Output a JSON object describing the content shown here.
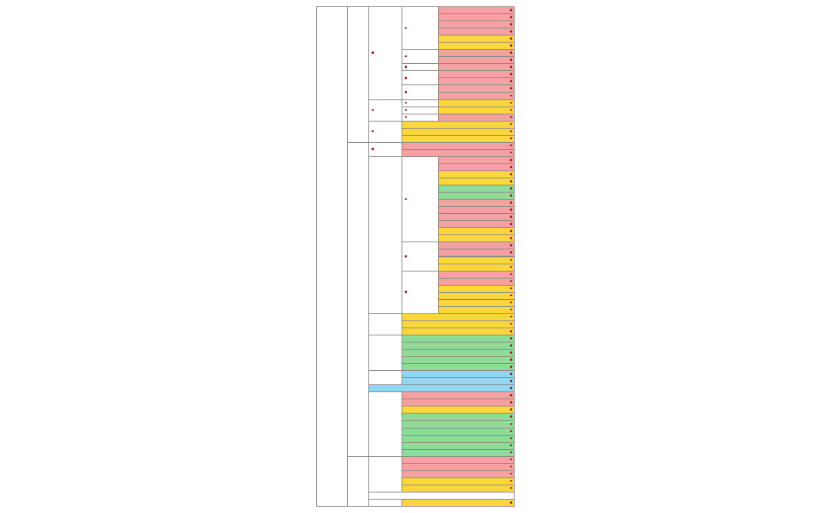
{
  "colors": {
    "red": "#f5a1a1",
    "yellow": "#fcd73c",
    "green": "#8fdb98",
    "blue": "#8fd7f2",
    "white": "#ffffff",
    "border": "#8a8a8a",
    "dot": "#9b1c1c"
  },
  "tree": {
    "label": "",
    "marker": false,
    "children": [
      {
        "label": "",
        "marker": false,
        "children": [
          {
            "label": "",
            "marker": true,
            "children": [
              {
                "label": "",
                "marker": true,
                "children": [
                  {
                    "label": "",
                    "marker": true,
                    "children": [
                      {
                        "label": "",
                        "marker": true,
                        "color": "red"
                      },
                      {
                        "label": "",
                        "marker": true,
                        "color": "red"
                      }
                    ]
                  },
                  {
                    "label": "",
                    "marker": true,
                    "children": [
                      {
                        "label": "",
                        "marker": true,
                        "color": "red"
                      },
                      {
                        "label": "",
                        "marker": true,
                        "color": "red"
                      },
                      {
                        "label": "",
                        "marker": true,
                        "color": "yellow"
                      },
                      {
                        "label": "",
                        "marker": true,
                        "color": "yellow"
                      }
                    ]
                  }
                ]
              },
              {
                "label": "",
                "marker": true,
                "children": [
                  {
                    "label": "",
                    "marker": true,
                    "color": "red"
                  },
                  {
                    "label": "",
                    "marker": true,
                    "color": "red"
                  }
                ]
              },
              {
                "label": "",
                "marker": true,
                "children": [
                  {
                    "label": "",
                    "marker": true,
                    "color": "red"
                  }
                ]
              },
              {
                "label": "",
                "marker": true,
                "children": [
                  {
                    "label": "",
                    "marker": true,
                    "color": "red"
                  },
                  {
                    "label": "",
                    "marker": true,
                    "color": "red"
                  }
                ]
              },
              {
                "label": "",
                "marker": true,
                "children": [
                  {
                    "label": "",
                    "marker": true,
                    "children": [
                      {
                        "label": "",
                        "marker": true,
                        "color": "red"
                      }
                    ]
                  },
                  {
                    "label": "",
                    "marker": true,
                    "children": [
                      {
                        "label": "",
                        "marker": true,
                        "color": "red"
                      }
                    ]
                  }
                ]
              }
            ]
          },
          {
            "label": "",
            "marker": true,
            "children": [
              {
                "label": "",
                "marker": true,
                "children": [
                  {
                    "label": "",
                    "marker": true,
                    "color": "yellow"
                  }
                ]
              },
              {
                "label": "",
                "marker": true,
                "children": [
                  {
                    "label": "",
                    "marker": true,
                    "color": "yellow"
                  }
                ]
              },
              {
                "label": "",
                "marker": true,
                "children": [
                  {
                    "label": "",
                    "marker": true,
                    "color": "red"
                  }
                ]
              }
            ]
          },
          {
            "label": "",
            "marker": true,
            "children": [
              {
                "label": "",
                "marker": true,
                "color": "yellow"
              },
              {
                "label": "",
                "marker": true,
                "color": "yellow"
              },
              {
                "label": "",
                "marker": true,
                "color": "yellow"
              }
            ]
          }
        ]
      },
      {
        "label": "",
        "marker": false,
        "children": [
          {
            "label": "",
            "marker": true,
            "children": [
              {
                "label": "",
                "marker": true,
                "color": "red"
              },
              {
                "label": "",
                "marker": true,
                "color": "red"
              }
            ]
          },
          {
            "label": "",
            "marker": false,
            "children": [
              {
                "label": "",
                "marker": true,
                "children": [
                  {
                    "label": "",
                    "marker": true,
                    "color": "red"
                  },
                  {
                    "label": "",
                    "marker": true,
                    "color": "red"
                  },
                  {
                    "label": "",
                    "marker": true,
                    "color": "yellow"
                  },
                  {
                    "label": "",
                    "marker": true,
                    "color": "yellow"
                  },
                  {
                    "label": "",
                    "marker": true,
                    "color": "green"
                  },
                  {
                    "label": "",
                    "marker": true,
                    "color": "green"
                  },
                  {
                    "label": "",
                    "marker": true,
                    "color": "red"
                  },
                  {
                    "label": "",
                    "marker": true,
                    "color": "red"
                  },
                  {
                    "label": "",
                    "marker": true,
                    "color": "red"
                  },
                  {
                    "label": "",
                    "marker": true,
                    "color": "red"
                  },
                  {
                    "label": "",
                    "marker": true,
                    "color": "yellow"
                  },
                  {
                    "label": "",
                    "marker": true,
                    "color": "yellow"
                  }
                ]
              },
              {
                "label": "",
                "marker": true,
                "children": [
                  {
                    "label": "",
                    "marker": true,
                    "color": "red"
                  },
                  {
                    "label": "",
                    "marker": true,
                    "color": "red"
                  },
                  {
                    "label": "",
                    "marker": true,
                    "color": "yellow"
                  },
                  {
                    "label": "",
                    "marker": true,
                    "color": "yellow"
                  }
                ]
              },
              {
                "label": "",
                "marker": true,
                "children": [
                  {
                    "label": "",
                    "marker": true,
                    "color": "red"
                  },
                  {
                    "label": "",
                    "marker": true,
                    "color": "red"
                  },
                  {
                    "label": "",
                    "marker": true,
                    "color": "yellow"
                  },
                  {
                    "label": "",
                    "marker": true,
                    "color": "yellow"
                  },
                  {
                    "label": "",
                    "marker": true,
                    "color": "yellow"
                  },
                  {
                    "label": "",
                    "marker": true,
                    "color": "yellow"
                  }
                ]
              }
            ]
          },
          {
            "label": "",
            "marker": false,
            "children": [
              {
                "label": "",
                "marker": true,
                "color": "yellow"
              },
              {
                "label": "",
                "marker": true,
                "color": "yellow"
              },
              {
                "label": "",
                "marker": true,
                "color": "yellow"
              }
            ]
          },
          {
            "label": "",
            "marker": false,
            "children": [
              {
                "label": "",
                "marker": true,
                "color": "green"
              },
              {
                "label": "",
                "marker": true,
                "color": "green"
              },
              {
                "label": "",
                "marker": true,
                "color": "green"
              },
              {
                "label": "",
                "marker": true,
                "color": "green"
              },
              {
                "label": "",
                "marker": true,
                "color": "green"
              }
            ]
          },
          {
            "label": "",
            "marker": false,
            "children": [
              {
                "label": "",
                "marker": true,
                "color": "blue"
              },
              {
                "label": "",
                "marker": true,
                "color": "blue"
              }
            ]
          },
          {
            "label": "",
            "marker": true,
            "color": "blue"
          },
          {
            "label": "",
            "marker": false,
            "children": [
              {
                "label": "",
                "marker": true,
                "color": "red"
              },
              {
                "label": "",
                "marker": true,
                "color": "red"
              },
              {
                "label": "",
                "marker": true,
                "color": "yellow"
              },
              {
                "label": "",
                "marker": true,
                "color": "green"
              },
              {
                "label": "",
                "marker": true,
                "color": "green"
              },
              {
                "label": "",
                "marker": true,
                "color": "green"
              },
              {
                "label": "",
                "marker": true,
                "color": "green"
              },
              {
                "label": "",
                "marker": true,
                "color": "green"
              },
              {
                "label": "",
                "marker": true,
                "color": "green"
              }
            ]
          }
        ]
      },
      {
        "label": "",
        "marker": false,
        "children": [
          {
            "label": "",
            "marker": false,
            "children": [
              {
                "label": "",
                "marker": true,
                "color": "red"
              },
              {
                "label": "",
                "marker": true,
                "color": "red"
              },
              {
                "label": "",
                "marker": true,
                "color": "red"
              },
              {
                "label": "",
                "marker": true,
                "color": "yellow"
              },
              {
                "label": "",
                "marker": true,
                "color": "yellow"
              }
            ]
          },
          {
            "label": "",
            "marker": false,
            "color": "white"
          },
          {
            "label": "",
            "marker": false,
            "children": [
              {
                "label": "",
                "marker": true,
                "color": "yellow"
              }
            ]
          }
        ]
      }
    ]
  }
}
